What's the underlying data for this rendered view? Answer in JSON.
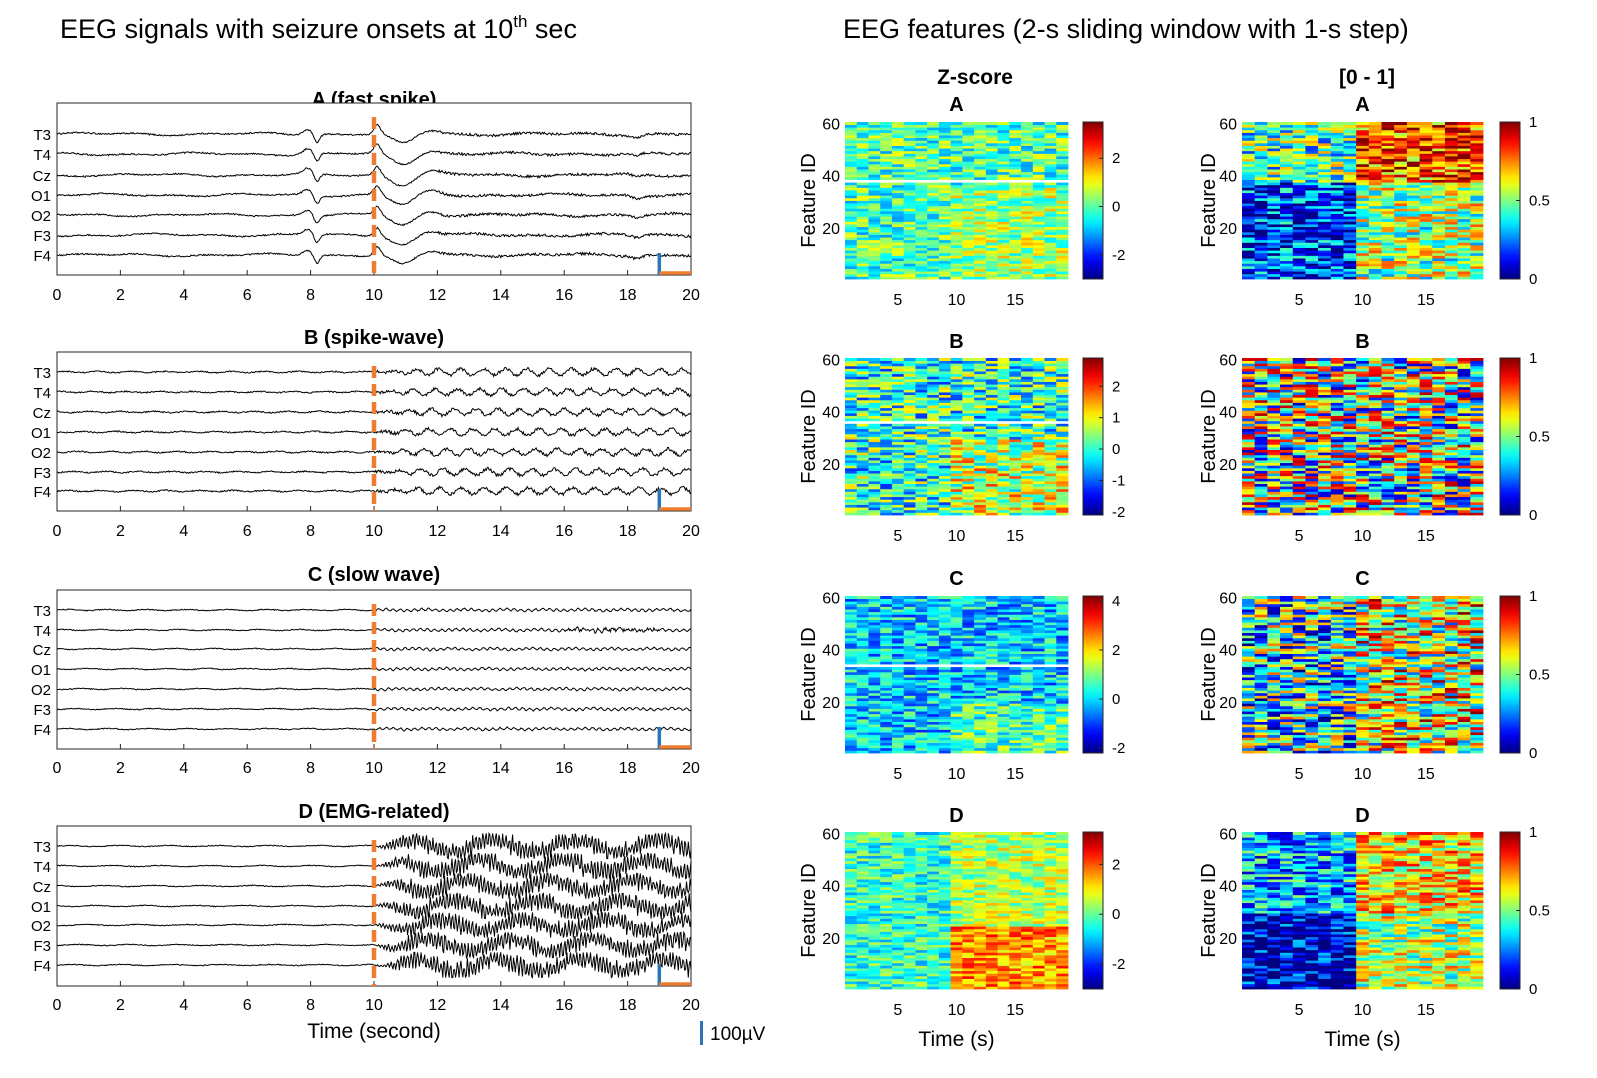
{
  "figure": {
    "left_title": "EEG signals with seizure onsets at 10",
    "left_title_sup": "th",
    "left_title_tail": " sec",
    "right_title": "EEG features (2-s sliding window with 1-s step)",
    "col_zscore": "Z-score",
    "col_minmax": "[0 - 1]",
    "x_label_signals": "Time (second)",
    "x_label_features": "Time (s)",
    "y_label_features": "Feature ID",
    "scale_bar_label": "100µV",
    "onset_color": "#ED7D31",
    "scale_bar_color": "#2E75B6",
    "colormap": "jet"
  },
  "chart_data": [
    {
      "type": "line",
      "panel": "A",
      "title": "A (fast spike)",
      "channels": [
        "T3",
        "T4",
        "Cz",
        "O1",
        "O2",
        "F3",
        "F4"
      ],
      "x_ticks": [
        "0",
        "2",
        "4",
        "6",
        "8",
        "10",
        "12",
        "14",
        "16",
        "18",
        "20"
      ],
      "xlim": [
        0,
        20
      ],
      "onset_s": 10,
      "pattern": "fast-spike"
    },
    {
      "type": "line",
      "panel": "B",
      "title": "B (spike-wave)",
      "channels": [
        "T3",
        "T4",
        "Cz",
        "O1",
        "O2",
        "F3",
        "F4"
      ],
      "x_ticks": [
        "0",
        "2",
        "4",
        "6",
        "8",
        "10",
        "12",
        "14",
        "16",
        "18",
        "20"
      ],
      "xlim": [
        0,
        20
      ],
      "onset_s": 10,
      "pattern": "spike-wave"
    },
    {
      "type": "line",
      "panel": "C",
      "title": "C (slow wave)",
      "channels": [
        "T3",
        "T4",
        "Cz",
        "O1",
        "O2",
        "F3",
        "F4"
      ],
      "x_ticks": [
        "0",
        "2",
        "4",
        "6",
        "8",
        "10",
        "12",
        "14",
        "16",
        "18",
        "20"
      ],
      "xlim": [
        0,
        20
      ],
      "onset_s": 10,
      "pattern": "slow-wave"
    },
    {
      "type": "line",
      "panel": "D",
      "title": "D (EMG-related)",
      "channels": [
        "T3",
        "T4",
        "Cz",
        "O1",
        "O2",
        "F3",
        "F4"
      ],
      "x_ticks": [
        "0",
        "2",
        "4",
        "6",
        "8",
        "10",
        "12",
        "14",
        "16",
        "18",
        "20"
      ],
      "xlim": [
        0,
        20
      ],
      "onset_s": 10,
      "pattern": "emg"
    },
    {
      "type": "heatmap",
      "panel": "A",
      "normalization": "zscore",
      "title": "A",
      "y_ticks": [
        "20",
        "40",
        "60"
      ],
      "x_ticks": [
        "5",
        "10",
        "15"
      ],
      "colorbar_ticks": [
        "2",
        "0",
        "-2"
      ],
      "clim": [
        -3,
        3.5
      ],
      "n_windows": 19,
      "n_features": 60,
      "white_row": 38,
      "pattern": "A"
    },
    {
      "type": "heatmap",
      "panel": "B",
      "normalization": "zscore",
      "title": "B",
      "y_ticks": [
        "20",
        "40",
        "60"
      ],
      "x_ticks": [
        "5",
        "10",
        "15"
      ],
      "colorbar_ticks": [
        "2",
        "1",
        "0",
        "-1",
        "-2"
      ],
      "clim": [
        -2.1,
        2.9
      ],
      "n_windows": 19,
      "n_features": 60,
      "white_row": 36,
      "pattern": "B"
    },
    {
      "type": "heatmap",
      "panel": "C",
      "normalization": "zscore",
      "title": "C",
      "y_ticks": [
        "20",
        "40",
        "60"
      ],
      "x_ticks": [
        "5",
        "10",
        "15"
      ],
      "colorbar_ticks": [
        "4",
        "2",
        "0",
        "-2"
      ],
      "clim": [
        -2.2,
        4.2
      ],
      "n_windows": 19,
      "n_features": 60,
      "white_row": 34,
      "pattern": "C"
    },
    {
      "type": "heatmap",
      "panel": "D",
      "normalization": "zscore",
      "title": "D",
      "y_ticks": [
        "20",
        "40",
        "60"
      ],
      "x_ticks": [
        "5",
        "10",
        "15"
      ],
      "colorbar_ticks": [
        "2",
        "0",
        "-2"
      ],
      "clim": [
        -3,
        3.3
      ],
      "n_windows": 19,
      "n_features": 60,
      "white_row": null,
      "pattern": "D"
    },
    {
      "type": "heatmap",
      "panel": "A",
      "normalization": "minmax",
      "title": "A",
      "y_ticks": [
        "20",
        "40",
        "60"
      ],
      "x_ticks": [
        "5",
        "10",
        "15"
      ],
      "colorbar_ticks": [
        "1",
        "0.5",
        "0"
      ],
      "clim": [
        0,
        1
      ],
      "n_windows": 19,
      "n_features": 60,
      "white_row": null,
      "pattern": "A"
    },
    {
      "type": "heatmap",
      "panel": "B",
      "normalization": "minmax",
      "title": "B",
      "y_ticks": [
        "20",
        "40",
        "60"
      ],
      "x_ticks": [
        "5",
        "10",
        "15"
      ],
      "colorbar_ticks": [
        "1",
        "0.5",
        "0"
      ],
      "clim": [
        0,
        1
      ],
      "n_windows": 19,
      "n_features": 60,
      "white_row": null,
      "pattern": "B"
    },
    {
      "type": "heatmap",
      "panel": "C",
      "normalization": "minmax",
      "title": "C",
      "y_ticks": [
        "20",
        "40",
        "60"
      ],
      "x_ticks": [
        "5",
        "10",
        "15"
      ],
      "colorbar_ticks": [
        "1",
        "0.5",
        "0"
      ],
      "clim": [
        0,
        1
      ],
      "n_windows": 19,
      "n_features": 60,
      "white_row": null,
      "pattern": "C"
    },
    {
      "type": "heatmap",
      "panel": "D",
      "normalization": "minmax",
      "title": "D",
      "y_ticks": [
        "20",
        "40",
        "60"
      ],
      "x_ticks": [
        "5",
        "10",
        "15"
      ],
      "colorbar_ticks": [
        "1",
        "0.5",
        "0"
      ],
      "clim": [
        0,
        1
      ],
      "n_windows": 19,
      "n_features": 60,
      "white_row": null,
      "pattern": "D"
    }
  ]
}
